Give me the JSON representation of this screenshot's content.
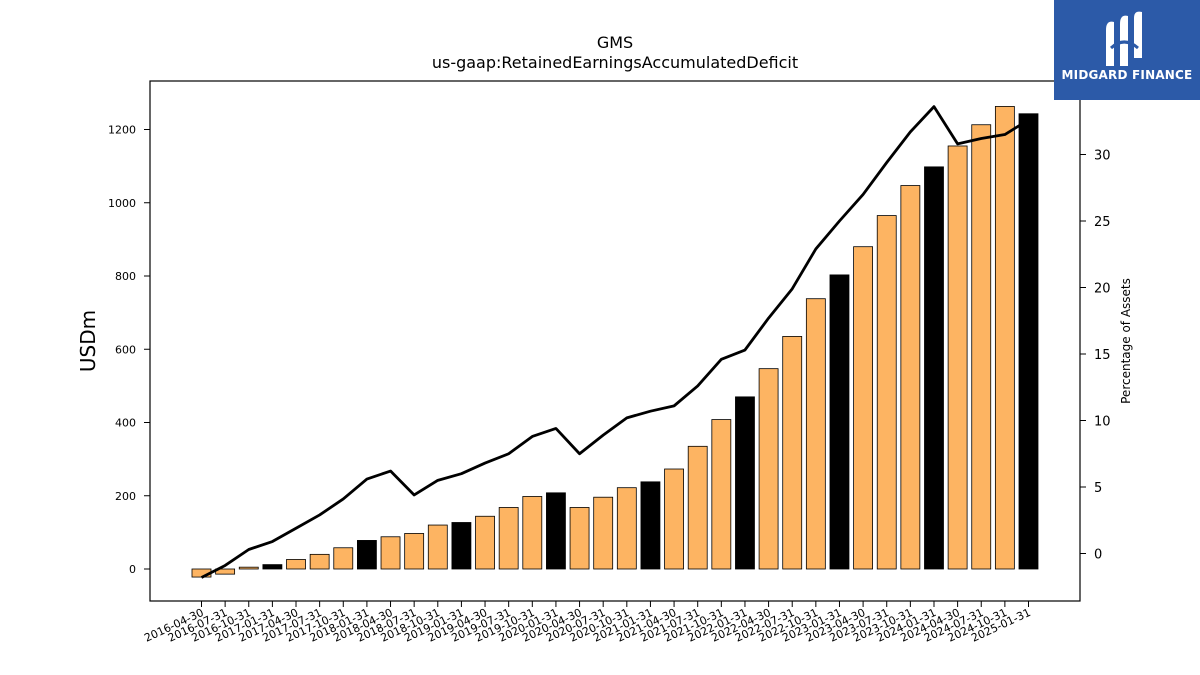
{
  "chart_data": {
    "type": "bar",
    "title": "GMS",
    "subtitle": "us-gaap:RetainedEarningsAccumulatedDeficit",
    "ylabel": "USDm",
    "y2label": "Percentage of Assets",
    "ylim": [
      -90,
      1330
    ],
    "y2lim": [
      -3.7,
      35.7
    ],
    "yticks": [
      0,
      200,
      400,
      600,
      800,
      1000,
      1200
    ],
    "y2ticks": [
      0,
      5,
      10,
      15,
      20,
      25,
      30
    ],
    "grid": false,
    "categories": [
      "2016-04-30",
      "2016-07-31",
      "2016-10-31",
      "2017-01-31",
      "2017-04-30",
      "2017-07-31",
      "2017-10-31",
      "2018-01-31",
      "2018-04-30",
      "2018-07-31",
      "2018-10-31",
      "2019-01-31",
      "2019-04-30",
      "2019-07-31",
      "2019-10-31",
      "2020-01-31",
      "2020-04-30",
      "2020-07-31",
      "2020-10-31",
      "2021-01-31",
      "2021-04-30",
      "2021-07-31",
      "2021-10-31",
      "2022-01-31",
      "2022-04-30",
      "2022-07-31",
      "2022-10-31",
      "2023-01-31",
      "2023-04-30",
      "2023-07-31",
      "2023-10-31",
      "2024-01-31",
      "2024-04-30",
      "2024-07-31",
      "2024-10-31",
      "2025-01-31"
    ],
    "series": [
      {
        "type": "bar",
        "axis": "left",
        "values": [
          -22,
          -14,
          5,
          12,
          26,
          40,
          58,
          78,
          88,
          97,
          120,
          127,
          144,
          168,
          198,
          208,
          168,
          196,
          222,
          238,
          273,
          335,
          408,
          470,
          547,
          635,
          738,
          803,
          880,
          965,
          1047,
          1098,
          1155,
          1213,
          1263,
          1243
        ],
        "highlight": [
          false,
          false,
          false,
          true,
          false,
          false,
          false,
          true,
          false,
          false,
          false,
          true,
          false,
          false,
          false,
          true,
          false,
          false,
          false,
          true,
          false,
          false,
          false,
          true,
          false,
          false,
          false,
          true,
          false,
          false,
          false,
          true,
          false,
          false,
          false,
          true
        ]
      },
      {
        "type": "line",
        "axis": "right",
        "values": [
          -1.8,
          -0.9,
          0.3,
          0.9,
          1.9,
          2.9,
          4.1,
          5.6,
          6.2,
          4.4,
          5.5,
          6.0,
          6.8,
          7.5,
          8.8,
          9.4,
          7.5,
          8.9,
          10.2,
          10.7,
          11.1,
          12.6,
          14.6,
          15.3,
          17.7,
          19.9,
          22.9,
          25.0,
          27.0,
          29.4,
          31.7,
          33.6,
          30.8,
          31.2,
          31.5,
          32.6
        ]
      }
    ],
    "colors": {
      "bar": "#fdb462",
      "bar_highlight": "#000000",
      "bar_edge": "#000000",
      "line": "#000000",
      "logo_bg": "#2c5aa8"
    }
  },
  "logo": {
    "text": "MIDGARD FINANCE",
    "icon": "midgard-m-icon"
  }
}
